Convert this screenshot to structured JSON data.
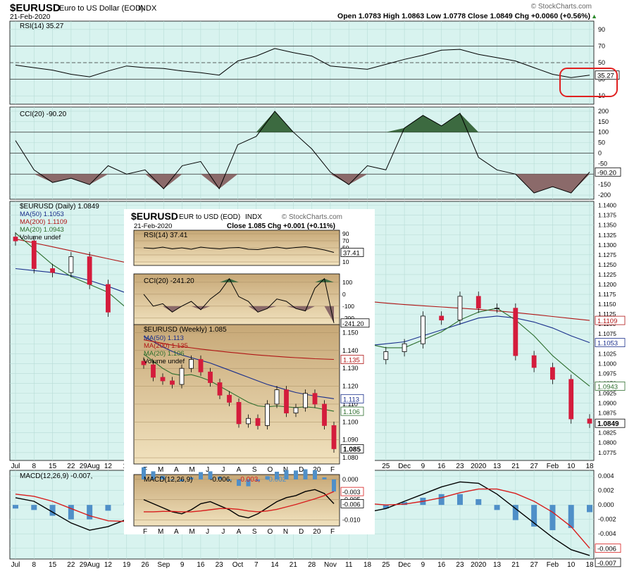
{
  "header": {
    "symbol": "$EURUSD",
    "name": "Euro to US Dollar (EOD)",
    "exchange": "INDX",
    "date": "21-Feb-2020",
    "watermark": "© StockCharts.com",
    "ohlc": "Open 1.0783  High 1.0863  Low 1.0778  Close 1.0849  Chg +0.0060 (+0.56%)",
    "up_arrow": "▲"
  },
  "chart_data": [
    {
      "type": "line",
      "panel": "rsi-daily",
      "label": "RSI(14) 35.27",
      "ylim": [
        0,
        100
      ],
      "y_ticks": [
        "90",
        "70",
        "50",
        "30",
        "10"
      ],
      "reference_lines": [
        70,
        50,
        30
      ],
      "last_value_label": "35.27",
      "x": [
        "Jul",
        "8",
        "15",
        "22",
        "29Aug",
        "12",
        "19",
        "26",
        "Sep",
        "9",
        "16",
        "23",
        "Oct",
        "7",
        "14",
        "21",
        "28",
        "Nov",
        "11",
        "18",
        "25",
        "Dec",
        "9",
        "16",
        "23",
        "2020",
        "13",
        "21",
        "27",
        "Feb",
        "10",
        "18"
      ],
      "values": [
        47,
        44,
        41,
        36,
        33,
        40,
        46,
        44,
        43,
        40,
        38,
        35,
        52,
        58,
        67,
        62,
        58,
        46,
        44,
        42,
        48,
        54,
        59,
        65,
        66,
        60,
        56,
        52,
        44,
        36,
        32,
        35
      ],
      "color": "#000000",
      "fill_below_30": "#8b6a6a"
    },
    {
      "type": "line",
      "panel": "cci-daily",
      "label": "CCI(20) -90.20",
      "ylim": [
        -220,
        220
      ],
      "y_ticks": [
        "200",
        "150",
        "100",
        "50",
        "0",
        "-50",
        "-100",
        "-150",
        "-200"
      ],
      "reference_lines": [
        100,
        0,
        -100
      ],
      "last_value_label": "-90.20",
      "x": [
        "Jul",
        "8",
        "15",
        "22",
        "29Aug",
        "12",
        "19",
        "26",
        "Sep",
        "9",
        "16",
        "23",
        "Oct",
        "7",
        "14",
        "21",
        "28",
        "Nov",
        "11",
        "18",
        "25",
        "Dec",
        "9",
        "16",
        "23",
        "2020",
        "13",
        "21",
        "27",
        "Feb",
        "10",
        "18"
      ],
      "values": [
        60,
        -80,
        -140,
        -120,
        -150,
        -60,
        -100,
        -80,
        -170,
        -60,
        -40,
        -170,
        40,
        80,
        200,
        100,
        20,
        -90,
        -150,
        -60,
        -80,
        120,
        180,
        130,
        190,
        -20,
        -80,
        -100,
        -190,
        -160,
        -190,
        -90
      ],
      "fill_above_100": "#3c6a40",
      "fill_below_minus100": "#8b6a6a"
    },
    {
      "type": "candlestick",
      "panel": "price-daily",
      "label": "$EURUSD (Daily) 1.0849",
      "ylim": [
        1.0755,
        1.141
      ],
      "y_ticks": [
        "1.1400",
        "1.1375",
        "1.1350",
        "1.1325",
        "1.1300",
        "1.1275",
        "1.1250",
        "1.1225",
        "1.1200",
        "1.1175",
        "1.1150",
        "1.1125",
        "1.1100",
        "1.1075",
        "1.1050",
        "1.1025",
        "1.1000",
        "1.0975",
        "1.0950",
        "1.0925",
        "1.0900",
        "1.0875",
        "1.0850",
        "1.0825",
        "1.0800",
        "1.0775"
      ],
      "x_labels": [
        "Jul",
        "8",
        "15",
        "22",
        "29Aug",
        "12",
        "19",
        "26",
        "Sep",
        "9",
        "16",
        "23",
        "Oct",
        "7",
        "14",
        "21",
        "28",
        "Nov",
        "11",
        "18",
        "25",
        "Dec",
        "9",
        "16",
        "23",
        "2020",
        "13",
        "21",
        "27",
        "Feb",
        "10",
        "18"
      ],
      "close": [
        1.131,
        1.124,
        1.123,
        1.127,
        1.12,
        1.113,
        1.103,
        1.12,
        1.105,
        1.103,
        1.1,
        1.096,
        1.095,
        1.098,
        1.101,
        1.112,
        1.11,
        1.115,
        1.102,
        1.101,
        1.103,
        1.105,
        1.112,
        1.111,
        1.117,
        1.114,
        1.114,
        1.102,
        1.099,
        1.096,
        1.086,
        1.0849
      ],
      "series": [
        {
          "name": "MA(50) 1.1053",
          "color": "#1a2f8c",
          "values": [
            1.124,
            1.1235,
            1.123,
            1.1222,
            1.121,
            1.1195,
            1.1178,
            1.116,
            1.114,
            1.112,
            1.11,
            1.108,
            1.106,
            1.1045,
            1.1035,
            1.103,
            1.103,
            1.1035,
            1.104,
            1.1045,
            1.105,
            1.1055,
            1.107,
            1.1085,
            1.11,
            1.1115,
            1.112,
            1.1115,
            1.1105,
            1.109,
            1.107,
            1.1053
          ],
          "last_label": "1.1053"
        },
        {
          "name": "MA(200) 1.1109",
          "color": "#b01515",
          "values": [
            1.1315,
            1.1305,
            1.1295,
            1.1285,
            1.1275,
            1.1265,
            1.1255,
            1.1245,
            1.1235,
            1.1225,
            1.1215,
            1.1205,
            1.1197,
            1.119,
            1.1183,
            1.1177,
            1.1172,
            1.1167,
            1.1162,
            1.1157,
            1.1153,
            1.1149,
            1.1146,
            1.1143,
            1.114,
            1.1137,
            1.1133,
            1.1129,
            1.1124,
            1.1119,
            1.1114,
            1.1109
          ],
          "last_label": "1.1109"
        },
        {
          "name": "MA(20) 1.0943",
          "color": "#2d6e2d",
          "values": [
            1.133,
            1.129,
            1.125,
            1.122,
            1.12,
            1.118,
            1.114,
            1.111,
            1.109,
            1.106,
            1.104,
            1.102,
            1.1,
            1.099,
            1.1,
            1.103,
            1.106,
            1.108,
            1.107,
            1.105,
            1.104,
            1.104,
            1.106,
            1.108,
            1.111,
            1.113,
            1.114,
            1.111,
            1.107,
            1.102,
            1.098,
            1.0943
          ],
          "last_label": "1.0943"
        }
      ],
      "last_close_label": "1.0849",
      "volume_label": "Volume undef"
    },
    {
      "type": "line",
      "panel": "macd-daily",
      "label": "MACD(12,26,9) -0.007,",
      "ylim": [
        -0.0075,
        0.0048
      ],
      "y_ticks": [
        "0.004",
        "0.002",
        "0.000",
        "-0.002",
        "-0.004",
        "-0.006"
      ],
      "x_labels": [
        "Jul",
        "8",
        "15",
        "22",
        "29Aug",
        "12",
        "19",
        "26",
        "Sep",
        "9",
        "16",
        "23",
        "Oct",
        "7",
        "14",
        "21",
        "28",
        "Nov",
        "11",
        "18",
        "25",
        "Dec",
        "9",
        "16",
        "23",
        "2020",
        "13",
        "21",
        "27",
        "Feb",
        "10",
        "18"
      ],
      "series": [
        {
          "name": "MACD",
          "color": "#000000",
          "values": [
            0.001,
            0.0005,
            -0.001,
            -0.0025,
            -0.0035,
            -0.003,
            -0.002,
            -0.0015,
            -0.002,
            -0.0025,
            -0.002,
            -0.001,
            0.0,
            0.001,
            0.002,
            0.0025,
            0.0015,
            0.0005,
            -0.0005,
            -0.001,
            -0.0005,
            0.0005,
            0.0015,
            0.0025,
            0.0032,
            0.003,
            0.0015,
            -0.0005,
            -0.0025,
            -0.0045,
            -0.0062,
            -0.007
          ]
        },
        {
          "name": "Signal",
          "color": "#d81d1d",
          "values": [
            0.0015,
            0.0012,
            0.0005,
            -0.0005,
            -0.0015,
            -0.0022,
            -0.0023,
            -0.0021,
            -0.002,
            -0.0021,
            -0.0021,
            -0.0018,
            -0.0013,
            -0.0006,
            0.0002,
            0.001,
            0.0013,
            0.0011,
            0.0006,
            0.0002,
            0.0,
            0.0001,
            0.0005,
            0.001,
            0.0017,
            0.0022,
            0.0022,
            0.0016,
            0.0005,
            -0.001,
            -0.003,
            -0.006
          ]
        }
      ],
      "histogram_color": "#4f8fc8",
      "last_labels": [
        "-0.006",
        "-0.007"
      ]
    },
    {
      "type": "line",
      "panel": "rsi-weekly",
      "label": "RSI(14) 37.41",
      "ylim": [
        0,
        100
      ],
      "y_ticks": [
        "90",
        "70",
        "50",
        "30",
        "10"
      ],
      "last_value_label": "37.41",
      "values": [
        50,
        48,
        52,
        47,
        50,
        46,
        52,
        49,
        47,
        50,
        51,
        46,
        45,
        49,
        52,
        48,
        51,
        53,
        49,
        44,
        37
      ]
    },
    {
      "type": "line",
      "panel": "cci-weekly",
      "label": "CCI(20) -241.20",
      "ylim": [
        -260,
        170
      ],
      "y_ticks": [
        "100",
        "0",
        "-100",
        "-200"
      ],
      "last_value_label": "-241.20",
      "values": [
        0,
        -100,
        -80,
        -150,
        -100,
        -60,
        -130,
        -40,
        20,
        130,
        -20,
        -60,
        -150,
        -120,
        -40,
        -60,
        -120,
        -140,
        50,
        130,
        -241
      ]
    },
    {
      "type": "candlestick",
      "panel": "price-weekly",
      "label": "$EURUSD (Weekly) 1.085",
      "ylim": [
        1.0765,
        1.1545
      ],
      "y_ticks": [
        "1.150",
        "1.140",
        "1.130",
        "1.120",
        "1.110",
        "1.100",
        "1.090",
        "1.080"
      ],
      "x_labels": [
        "F",
        "M",
        "A",
        "M",
        "J",
        "J",
        "A",
        "S",
        "O",
        "N",
        "D",
        "20",
        "F"
      ],
      "close": [
        1.132,
        1.125,
        1.123,
        1.121,
        1.13,
        1.135,
        1.128,
        1.122,
        1.115,
        1.111,
        1.099,
        1.102,
        1.098,
        1.11,
        1.118,
        1.105,
        1.108,
        1.116,
        1.11,
        1.098,
        1.085
      ],
      "series": [
        {
          "name": "MA(50) 1.113",
          "color": "#1a2f8c",
          "values": [
            1.148,
            1.145,
            1.142,
            1.1395,
            1.1375,
            1.136,
            1.1345,
            1.133,
            1.131,
            1.129,
            1.127,
            1.125,
            1.123,
            1.121,
            1.1195,
            1.118,
            1.1165,
            1.1155,
            1.1145,
            1.1138,
            1.113
          ],
          "last_label": "1.113"
        },
        {
          "name": "MA(200) 1.135",
          "color": "#b01515",
          "values": [
            1.146,
            1.145,
            1.144,
            1.143,
            1.1422,
            1.1415,
            1.1408,
            1.1402,
            1.1396,
            1.139,
            1.1385,
            1.138,
            1.1375,
            1.1371,
            1.1367,
            1.1363,
            1.136,
            1.1357,
            1.1354,
            1.1352,
            1.135
          ],
          "last_label": "1.135"
        },
        {
          "name": "MA(20) 1.106",
          "color": "#2d6e2d",
          "values": [
            1.138,
            1.134,
            1.13,
            1.127,
            1.126,
            1.1265,
            1.125,
            1.123,
            1.12,
            1.117,
            1.114,
            1.111,
            1.109,
            1.1085,
            1.109,
            1.1085,
            1.108,
            1.1085,
            1.108,
            1.107,
            1.106
          ],
          "last_label": "1.106"
        }
      ],
      "last_close_label": "1.085",
      "volume_label": "Volume undef"
    },
    {
      "type": "line",
      "panel": "macd-weekly",
      "label": "MACD(12,26,9)",
      "label_values": [
        "-0.006,",
        "-0.003,",
        "-0.002"
      ],
      "ylim": [
        -0.0115,
        0.0012
      ],
      "y_ticks": [
        "0.000",
        "-0.005",
        "-0.010"
      ],
      "series": [
        {
          "name": "MACD",
          "color": "#000000",
          "values": [
            -0.005,
            -0.006,
            -0.007,
            -0.008,
            -0.0085,
            -0.0075,
            -0.006,
            -0.0055,
            -0.0065,
            -0.0075,
            -0.009,
            -0.0095,
            -0.0085,
            -0.007,
            -0.0055,
            -0.0045,
            -0.004,
            -0.003,
            -0.0025,
            -0.0035,
            -0.006
          ]
        },
        {
          "name": "Signal",
          "color": "#d81d1d",
          "values": [
            -0.008,
            -0.008,
            -0.0079,
            -0.0079,
            -0.008,
            -0.008,
            -0.0078,
            -0.0075,
            -0.0072,
            -0.0072,
            -0.0074,
            -0.0078,
            -0.008,
            -0.0078,
            -0.0074,
            -0.0068,
            -0.0062,
            -0.0055,
            -0.0048,
            -0.004,
            -0.003
          ]
        }
      ],
      "last_labels": [
        "-0.003",
        "-0.006"
      ]
    }
  ],
  "inset_header": {
    "symbol": "$EURUSD",
    "name": "EUR to USD (EOD)",
    "exchange": "INDX",
    "watermark": "© StockCharts.com",
    "date": "21-Feb-2020",
    "summary": "Close 1.085  Chg +0.001 (+0.11%)"
  },
  "annotation": {
    "shape": "rounded-rectangle",
    "color": "#e02020"
  }
}
